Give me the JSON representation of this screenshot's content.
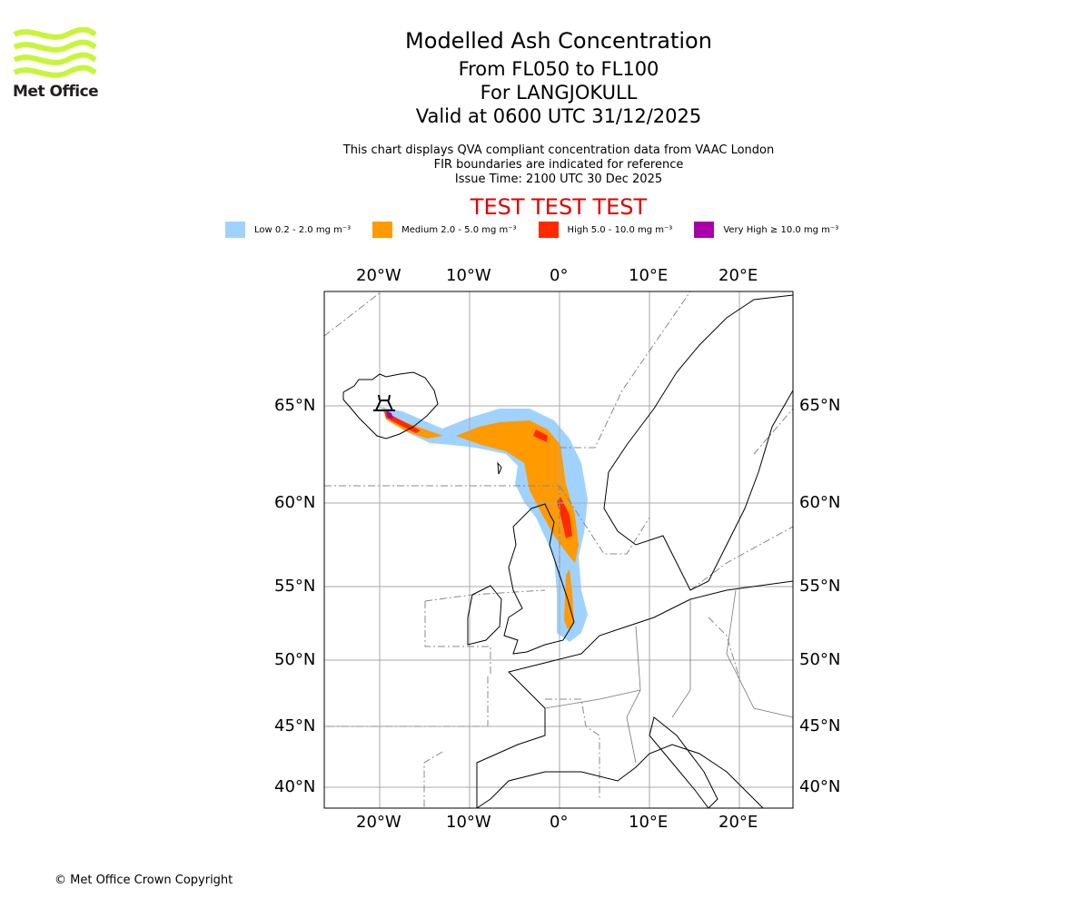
{
  "logo": {
    "text": "Met Office",
    "color": "#c8f53a"
  },
  "title": {
    "line1": "Modelled Ash Concentration",
    "line2": "From FL050 to FL100",
    "line3": "For LANGJOKULL",
    "line4": "Valid at 0600 UTC 31/12/2025"
  },
  "subtitle": {
    "line1": "This chart displays QVA compliant concentration data from VAAC London",
    "line2": "FIR boundaries are indicated for reference",
    "line3": "Issue Time: 2100 UTC 30 Dec 2025"
  },
  "test_banner": "TEST TEST TEST",
  "legend": [
    {
      "label": "Low 0.2 - 2.0 mg m⁻³",
      "color": "#a0d2ff"
    },
    {
      "label": "Medium 2.0 - 5.0 mg m⁻³",
      "color": "#ff9a00"
    },
    {
      "label": "High 5.0 - 10.0 mg m⁻³",
      "color": "#ff2a00"
    },
    {
      "label": "Very High ≥ 10.0 mg m⁻³",
      "color": "#aa00aa"
    }
  ],
  "map": {
    "lon_labels": [
      "20°W",
      "10°W",
      "0°",
      "10°E",
      "20°E"
    ],
    "lat_labels": [
      "65°N",
      "60°N",
      "55°N",
      "50°N",
      "45°N",
      "40°N"
    ],
    "volcano": "LANGJOKULL"
  },
  "copyright": "© Met Office Crown Copyright"
}
